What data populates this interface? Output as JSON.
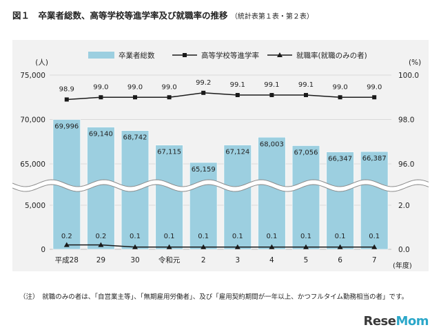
{
  "figure": {
    "title": "図１　卒業者総数、高等学校等進学率及び就職率の推移",
    "subtitle": "（統計表第１表・第２表）",
    "note": "（注）　就職のみの者は、「自営業主等」、「無期雇用労働者」、及び「雇用契約期間が一年以上、かつフルタイム勤務相当の者」です。",
    "logo": "ReseMom"
  },
  "chart_data": {
    "type": "bar",
    "categories": [
      "平成28",
      "29",
      "30",
      "令和元",
      "2",
      "3",
      "4",
      "5",
      "6",
      "7"
    ],
    "x_unit": "(年度)",
    "y_left": {
      "unit": "(人)",
      "ticks": [
        "0",
        "5,000",
        "65,000",
        "70,000",
        "75,000"
      ],
      "broken_axis": true
    },
    "y_right": {
      "unit": "(%)",
      "ticks": [
        "0.0",
        "2.0",
        "96.0",
        "98.0",
        "100.0"
      ],
      "broken_axis": true
    },
    "series": [
      {
        "name": "卒業者総数",
        "kind": "bar",
        "axis": "left",
        "color": "#9ccfe0",
        "values": [
          69996,
          69140,
          68742,
          67115,
          65159,
          67124,
          68003,
          67056,
          66347,
          66387
        ],
        "labels": [
          "69,996",
          "69,140",
          "68,742",
          "67,115",
          "65,159",
          "67,124",
          "68,003",
          "67,056",
          "66,347",
          "66,387"
        ]
      },
      {
        "name": "高等学校等進学率",
        "kind": "line",
        "marker": "square",
        "axis": "right",
        "color": "#1a1a1a",
        "values": [
          98.9,
          99.0,
          99.0,
          99.0,
          99.2,
          99.1,
          99.1,
          99.1,
          99.0,
          99.0
        ],
        "labels": [
          "98.9",
          "99.0",
          "99.0",
          "99.0",
          "99.2",
          "99.1",
          "99.1",
          "99.1",
          "99.0",
          "99.0"
        ]
      },
      {
        "name": "就職率(就職のみの者)",
        "kind": "line",
        "marker": "triangle",
        "axis": "right",
        "color": "#1a1a1a",
        "values": [
          0.2,
          0.2,
          0.1,
          0.1,
          0.1,
          0.1,
          0.1,
          0.1,
          0.1,
          0.1
        ],
        "labels": [
          "0.2",
          "0.2",
          "0.1",
          "0.1",
          "0.1",
          "0.1",
          "0.1",
          "0.1",
          "0.1",
          "0.1"
        ]
      }
    ]
  }
}
